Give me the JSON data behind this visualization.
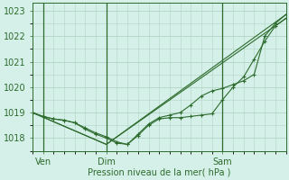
{
  "bg_color": "#d5f0e8",
  "grid_color": "#b0d4c4",
  "line_color": "#2d6b2d",
  "xlabel": "Pression niveau de la mer( hPa )",
  "ylim": [
    1017.5,
    1023.3
  ],
  "xlim": [
    0,
    96
  ],
  "yticks": [
    1018,
    1019,
    1020,
    1021,
    1022,
    1023
  ],
  "xtick_positions": [
    4,
    28,
    72
  ],
  "xtick_labels": [
    "Ven",
    "Dim",
    "Sam"
  ],
  "vlines": [
    4,
    28,
    72
  ],
  "series1": {
    "x": [
      0,
      4,
      8,
      12,
      16,
      20,
      24,
      28,
      32,
      36,
      40,
      44,
      48,
      52,
      56,
      60,
      64,
      68,
      72,
      76,
      80,
      84,
      88,
      92,
      96
    ],
    "y": [
      1019.0,
      1018.85,
      1018.75,
      1018.7,
      1018.6,
      1018.4,
      1018.2,
      1018.05,
      1017.85,
      1017.75,
      1018.1,
      1018.5,
      1018.75,
      1018.8,
      1018.8,
      1018.85,
      1018.9,
      1018.95,
      1019.5,
      1020.0,
      1020.4,
      1021.1,
      1021.8,
      1022.4,
      1022.7
    ]
  },
  "series2": {
    "x": [
      0,
      4,
      8,
      12,
      16,
      20,
      24,
      28,
      32,
      36,
      40,
      44,
      48,
      52,
      56,
      60,
      64,
      68,
      72,
      76,
      80,
      84,
      88,
      92,
      96
    ],
    "y": [
      1019.0,
      1018.85,
      1018.75,
      1018.7,
      1018.6,
      1018.35,
      1018.15,
      1018.0,
      1017.8,
      1017.75,
      1018.15,
      1018.55,
      1018.8,
      1018.9,
      1019.0,
      1019.3,
      1019.65,
      1019.85,
      1019.95,
      1020.1,
      1020.25,
      1020.5,
      1022.0,
      1022.5,
      1022.85
    ]
  },
  "series3": {
    "x": [
      0,
      28,
      96
    ],
    "y": [
      1019.0,
      1017.75,
      1022.7
    ]
  },
  "series4": {
    "x": [
      0,
      28,
      96
    ],
    "y": [
      1019.0,
      1017.75,
      1022.85
    ]
  },
  "xlabel_fontsize": 7,
  "ytick_fontsize": 7,
  "xtick_fontsize": 7
}
